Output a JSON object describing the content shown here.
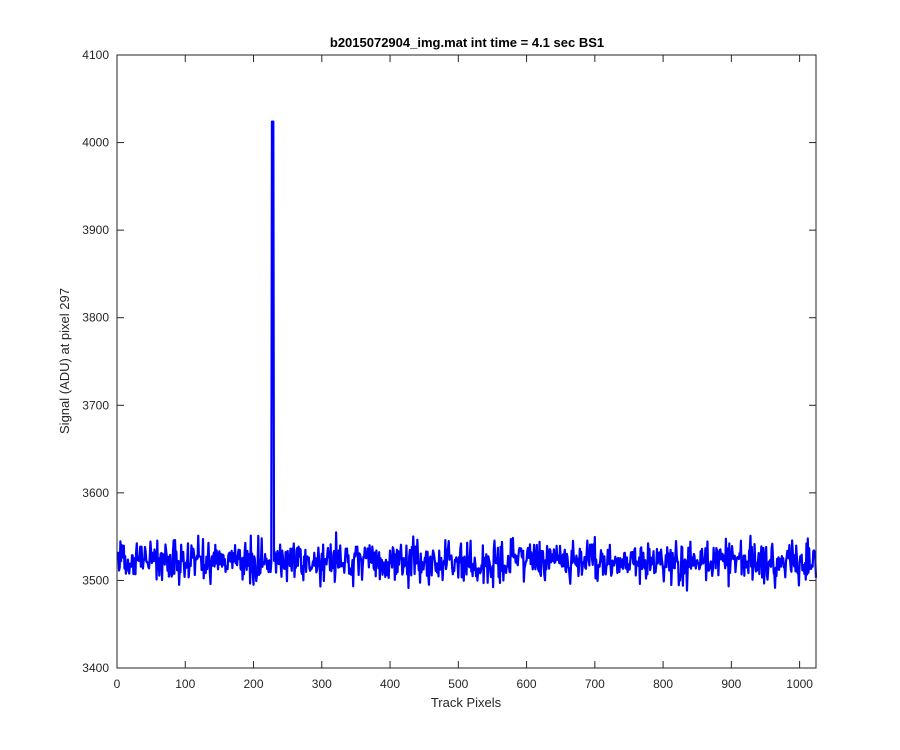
{
  "chart_data": {
    "type": "line",
    "title": "b2015072904_img.mat int time = 4.1 sec   BS1",
    "xlabel": "Track Pixels",
    "ylabel": "Signal (ADU) at pixel 297",
    "xlim": [
      0,
      1024
    ],
    "ylim": [
      3400,
      4100
    ],
    "xticks": [
      0,
      100,
      200,
      300,
      400,
      500,
      600,
      700,
      800,
      900,
      1000
    ],
    "yticks": [
      3400,
      3500,
      3600,
      3700,
      3800,
      3900,
      4000,
      4100
    ],
    "grid": false,
    "line_color": "#0000ff",
    "series": [
      {
        "noise": {
          "x_start": 1,
          "x_end": 1024,
          "baseline": 3522,
          "amplitude": 14,
          "min": 3488,
          "max": 3556
        },
        "spike": {
          "x": 228,
          "y": 4024,
          "width": 2
        }
      }
    ]
  }
}
